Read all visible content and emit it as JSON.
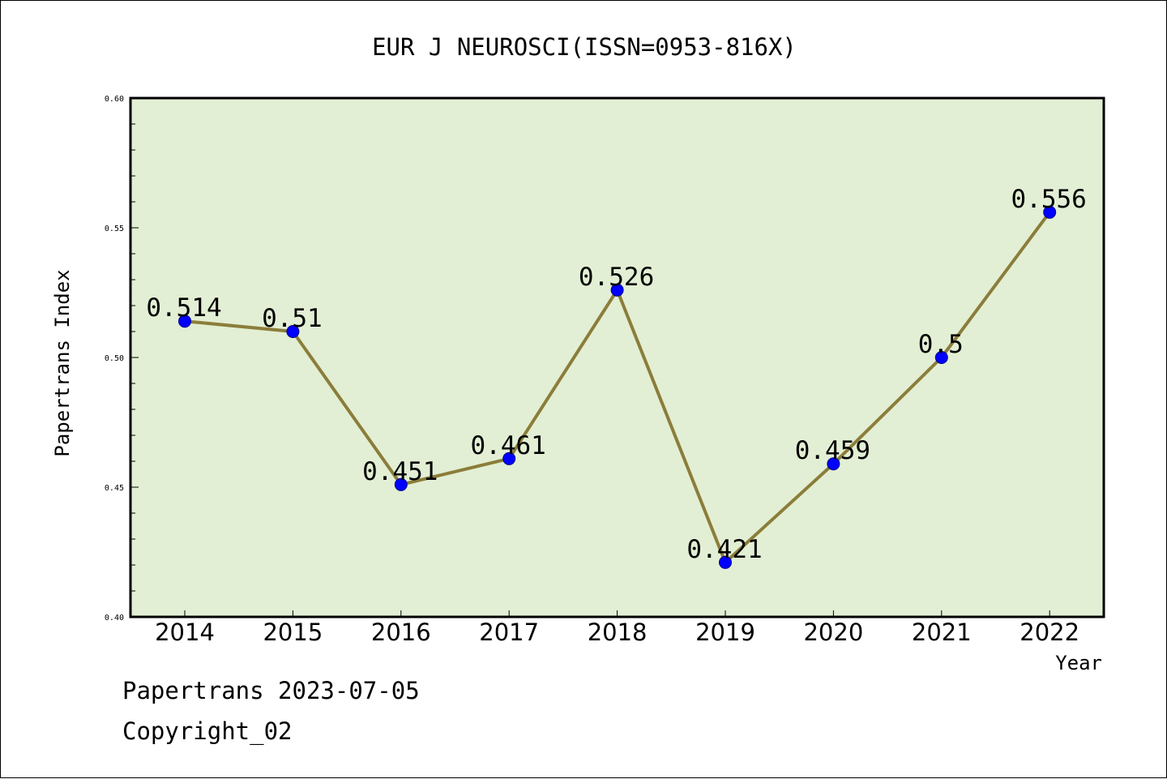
{
  "chart_data": {
    "type": "line",
    "title": "EUR J NEUROSCI(ISSN=0953-816X)",
    "xlabel": "Year",
    "ylabel": "Papertrans Index",
    "categories": [
      "2014",
      "2015",
      "2016",
      "2017",
      "2018",
      "2019",
      "2020",
      "2021",
      "2022"
    ],
    "values": [
      0.514,
      0.51,
      0.451,
      0.461,
      0.526,
      0.421,
      0.459,
      0.5,
      0.556
    ],
    "data_labels": [
      "0.514",
      "0.51",
      "0.451",
      "0.461",
      "0.526",
      "0.421",
      "0.459",
      "0.5",
      "0.556"
    ],
    "ylim": [
      0.4,
      0.6
    ],
    "yticks": [
      "0.40",
      "0.45",
      "0.50",
      "0.55",
      "0.60"
    ],
    "grid": false,
    "colors": {
      "plot_background": "#e2efd4",
      "line": "#8b7d3a",
      "marker": "#0000ff"
    }
  },
  "footer": {
    "line1": "Papertrans 2023-07-05",
    "line2": "Copyright_02"
  }
}
